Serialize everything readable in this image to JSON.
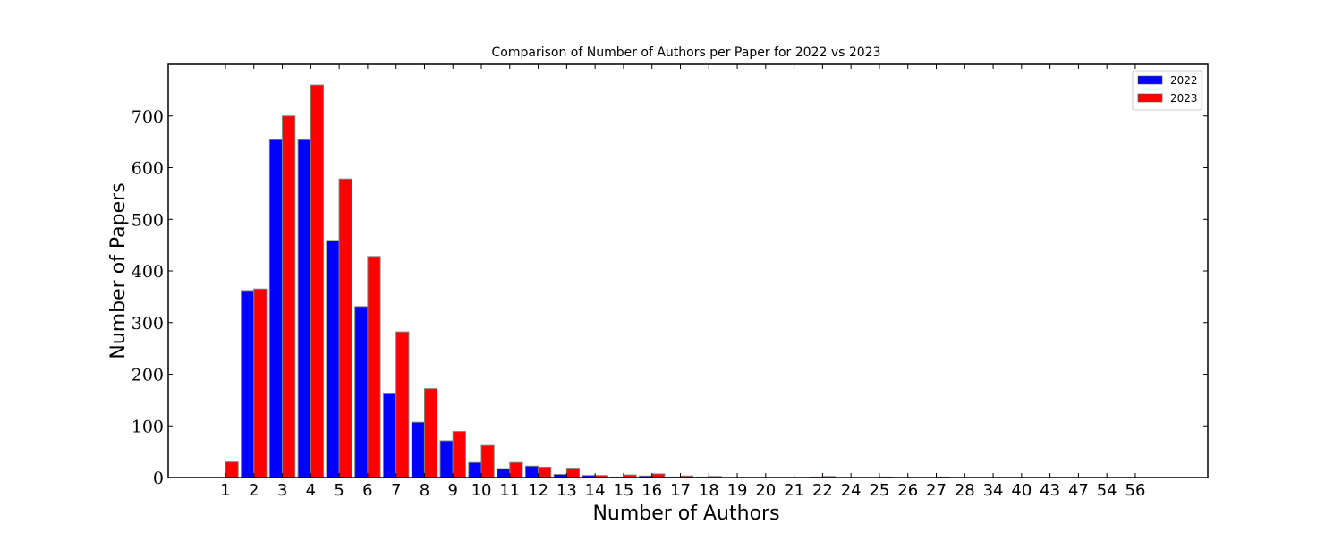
{
  "chart_data": {
    "type": "bar",
    "title": "Comparison of Number of Authors per Paper for 2022 vs 2023",
    "xlabel": "Number of Authors",
    "ylabel": "Number of Papers",
    "ylim": [
      0,
      800
    ],
    "yticks": [
      0,
      100,
      200,
      300,
      400,
      500,
      600,
      700
    ],
    "grid": false,
    "legend_position": "top-right",
    "categories": [
      "1",
      "2",
      "3",
      "4",
      "5",
      "6",
      "7",
      "8",
      "9",
      "10",
      "11",
      "12",
      "13",
      "14",
      "15",
      "16",
      "17",
      "18",
      "19",
      "20",
      "21",
      "22",
      "24",
      "25",
      "26",
      "27",
      "28",
      "34",
      "40",
      "43",
      "47",
      "54",
      "56"
    ],
    "series": [
      {
        "name": "2022",
        "color": "#0000ff",
        "values": [
          0,
          362,
          654,
          654,
          459,
          331,
          162,
          107,
          71,
          29,
          17,
          22,
          6,
          4,
          1,
          3,
          1,
          1,
          0,
          0,
          0,
          1,
          0,
          0,
          0,
          0,
          0,
          0,
          0,
          0,
          0,
          0,
          0
        ]
      },
      {
        "name": "2023",
        "color": "#ff0000",
        "values": [
          30,
          365,
          700,
          760,
          578,
          428,
          282,
          172,
          89,
          62,
          29,
          20,
          18,
          4,
          5,
          7,
          3,
          2,
          0,
          0,
          0,
          2,
          0,
          1,
          0,
          1,
          0,
          0,
          0,
          0,
          0,
          0,
          0
        ]
      }
    ]
  }
}
